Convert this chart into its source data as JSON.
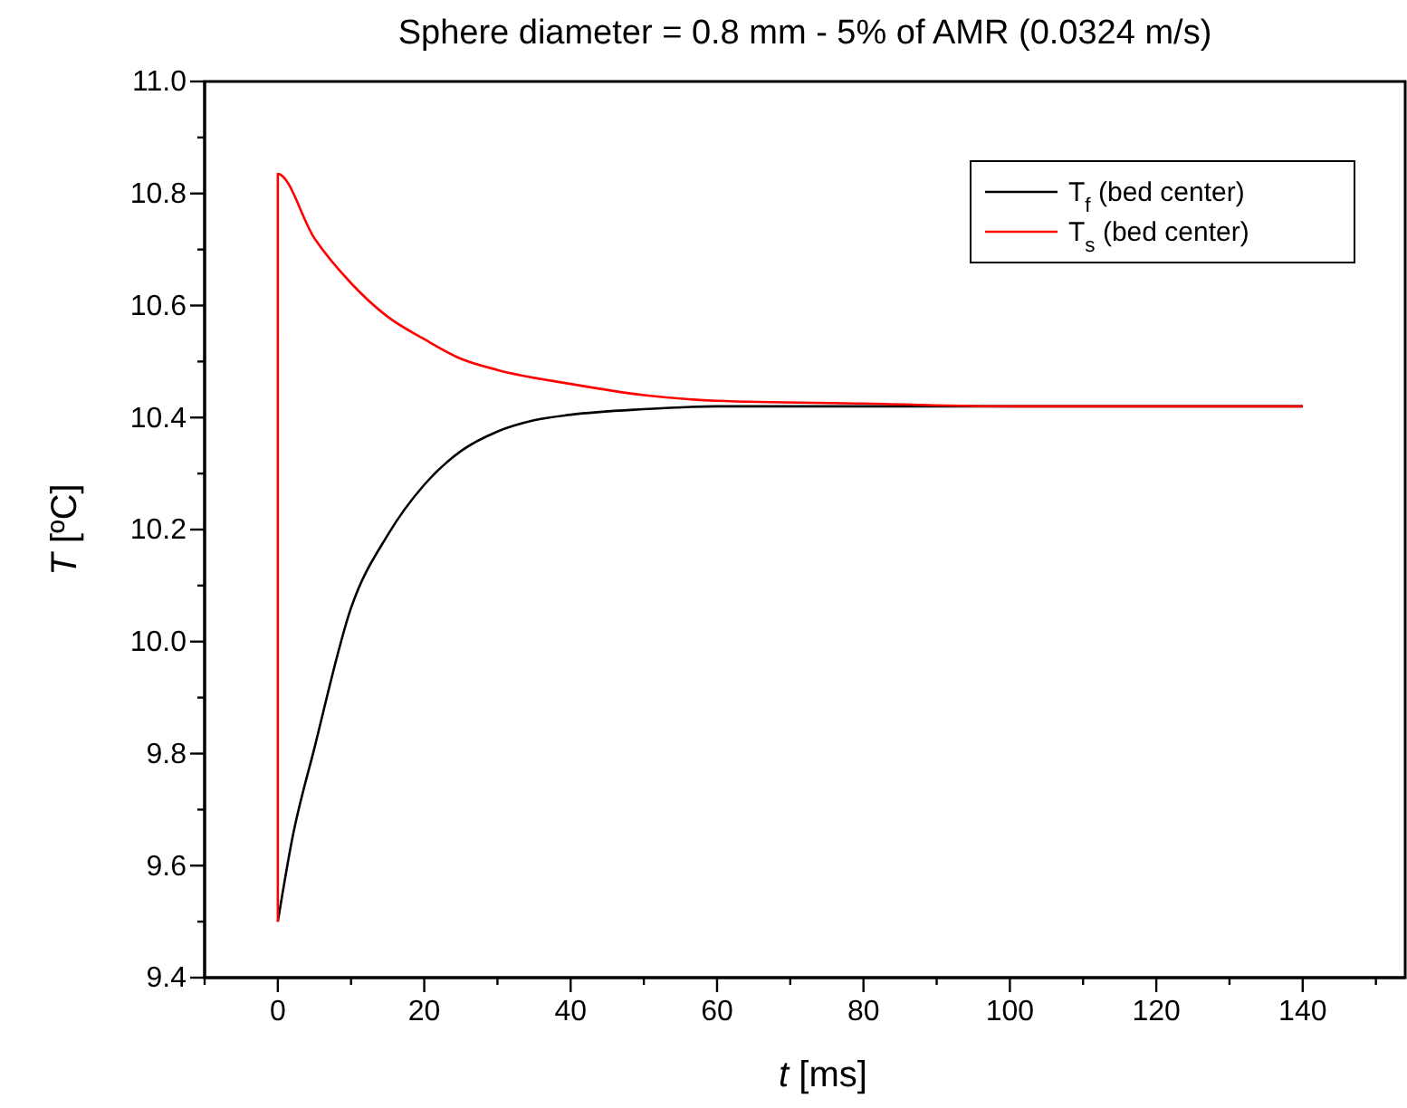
{
  "chart_data": {
    "type": "line",
    "title": "Sphere diameter = 0.8 mm - 5% of AMR (0.0324 m/s)",
    "xlabel": "t [ms]",
    "ylabel": "T [ºC]",
    "xlim": [
      -10,
      154
    ],
    "ylim": [
      9.4,
      11.0
    ],
    "xticks": [
      {
        "value": -10,
        "label": null
      },
      0,
      {
        "value": 10,
        "label": null
      },
      20,
      {
        "value": 30,
        "label": null
      },
      40,
      {
        "value": 50,
        "label": null
      },
      60,
      {
        "value": 70,
        "label": null
      },
      80,
      {
        "value": 90,
        "label": null
      },
      100,
      {
        "value": 110,
        "label": null
      },
      120,
      {
        "value": 130,
        "label": null
      },
      140,
      {
        "value": 150,
        "label": null
      }
    ],
    "yticks": [
      9.4,
      {
        "value": 9.5,
        "label": null
      },
      9.6,
      {
        "value": 9.7,
        "label": null
      },
      9.8,
      {
        "value": 9.9,
        "label": null
      },
      {
        "value": 10,
        "label": "10.0"
      },
      {
        "value": 10.1,
        "label": null
      },
      10.2,
      {
        "value": 10.3,
        "label": null
      },
      10.4,
      {
        "value": 10.5,
        "label": null
      },
      10.6,
      {
        "value": 10.7,
        "label": null
      },
      10.8,
      {
        "value": 10.9,
        "label": null
      },
      {
        "value": 11,
        "label": "11.0"
      }
    ],
    "legend": "top right",
    "grid": false,
    "marker": "none",
    "line_style": "solid",
    "series": [
      {
        "name": "T$_{f}$ (bed center)",
        "color": "#000000",
        "x": [
          0,
          2,
          5,
          10,
          15,
          20,
          25,
          30,
          35,
          40,
          50,
          60,
          80,
          100,
          120,
          140
        ],
        "values": [
          9.5,
          9.65,
          9.81,
          10.06,
          10.19,
          10.28,
          10.34,
          10.375,
          10.395,
          10.405,
          10.415,
          10.42,
          10.42,
          10.42,
          10.42,
          10.42
        ]
      },
      {
        "name": "T$_{s}$ (bed center)",
        "color": "#ff0000",
        "x": [
          0,
          0,
          5,
          10,
          15,
          20,
          25,
          30,
          40,
          50,
          60,
          80,
          100,
          120,
          140
        ],
        "values": [
          9.5,
          10.835,
          10.72,
          10.64,
          10.58,
          10.54,
          10.505,
          10.485,
          10.46,
          10.44,
          10.43,
          10.425,
          10.42,
          10.42,
          10.42
        ]
      }
    ]
  }
}
